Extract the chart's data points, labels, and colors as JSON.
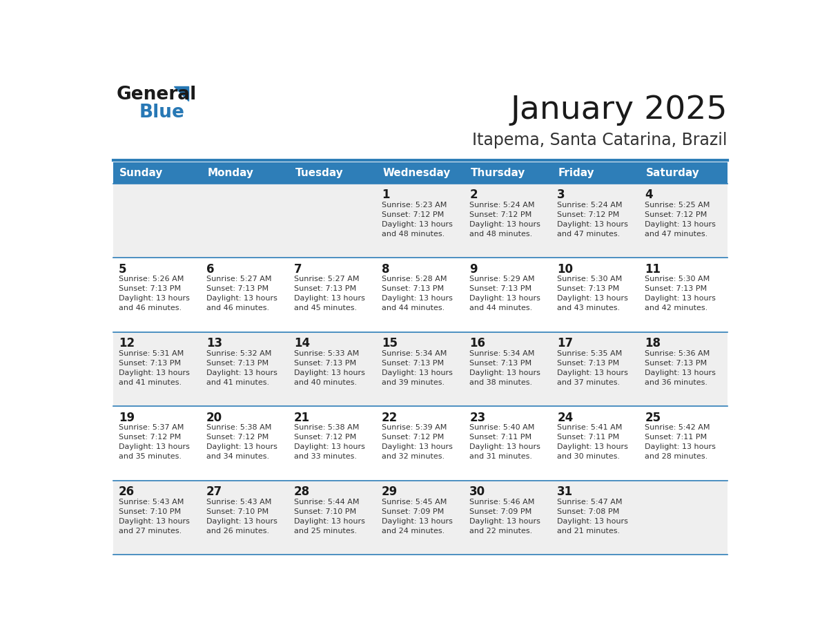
{
  "title": "January 2025",
  "subtitle": "Itapema, Santa Catarina, Brazil",
  "days_of_week": [
    "Sunday",
    "Monday",
    "Tuesday",
    "Wednesday",
    "Thursday",
    "Friday",
    "Saturday"
  ],
  "header_bg": "#2E7EB8",
  "header_text_color": "#FFFFFF",
  "cell_bg_white": "#FFFFFF",
  "cell_bg_gray": "#EFEFEF",
  "cell_border_color": "#2E7EB8",
  "day_number_color": "#1a1a1a",
  "cell_text_color": "#333333",
  "title_color": "#1a1a1a",
  "subtitle_color": "#333333",
  "logo_general_color": "#1a1a1a",
  "logo_blue_color": "#2778B5",
  "background_color": "#FFFFFF",
  "weeks": [
    [
      {
        "day": null,
        "info": null
      },
      {
        "day": null,
        "info": null
      },
      {
        "day": null,
        "info": null
      },
      {
        "day": 1,
        "info": "Sunrise: 5:23 AM\nSunset: 7:12 PM\nDaylight: 13 hours\nand 48 minutes."
      },
      {
        "day": 2,
        "info": "Sunrise: 5:24 AM\nSunset: 7:12 PM\nDaylight: 13 hours\nand 48 minutes."
      },
      {
        "day": 3,
        "info": "Sunrise: 5:24 AM\nSunset: 7:12 PM\nDaylight: 13 hours\nand 47 minutes."
      },
      {
        "day": 4,
        "info": "Sunrise: 5:25 AM\nSunset: 7:12 PM\nDaylight: 13 hours\nand 47 minutes."
      }
    ],
    [
      {
        "day": 5,
        "info": "Sunrise: 5:26 AM\nSunset: 7:13 PM\nDaylight: 13 hours\nand 46 minutes."
      },
      {
        "day": 6,
        "info": "Sunrise: 5:27 AM\nSunset: 7:13 PM\nDaylight: 13 hours\nand 46 minutes."
      },
      {
        "day": 7,
        "info": "Sunrise: 5:27 AM\nSunset: 7:13 PM\nDaylight: 13 hours\nand 45 minutes."
      },
      {
        "day": 8,
        "info": "Sunrise: 5:28 AM\nSunset: 7:13 PM\nDaylight: 13 hours\nand 44 minutes."
      },
      {
        "day": 9,
        "info": "Sunrise: 5:29 AM\nSunset: 7:13 PM\nDaylight: 13 hours\nand 44 minutes."
      },
      {
        "day": 10,
        "info": "Sunrise: 5:30 AM\nSunset: 7:13 PM\nDaylight: 13 hours\nand 43 minutes."
      },
      {
        "day": 11,
        "info": "Sunrise: 5:30 AM\nSunset: 7:13 PM\nDaylight: 13 hours\nand 42 minutes."
      }
    ],
    [
      {
        "day": 12,
        "info": "Sunrise: 5:31 AM\nSunset: 7:13 PM\nDaylight: 13 hours\nand 41 minutes."
      },
      {
        "day": 13,
        "info": "Sunrise: 5:32 AM\nSunset: 7:13 PM\nDaylight: 13 hours\nand 41 minutes."
      },
      {
        "day": 14,
        "info": "Sunrise: 5:33 AM\nSunset: 7:13 PM\nDaylight: 13 hours\nand 40 minutes."
      },
      {
        "day": 15,
        "info": "Sunrise: 5:34 AM\nSunset: 7:13 PM\nDaylight: 13 hours\nand 39 minutes."
      },
      {
        "day": 16,
        "info": "Sunrise: 5:34 AM\nSunset: 7:13 PM\nDaylight: 13 hours\nand 38 minutes."
      },
      {
        "day": 17,
        "info": "Sunrise: 5:35 AM\nSunset: 7:13 PM\nDaylight: 13 hours\nand 37 minutes."
      },
      {
        "day": 18,
        "info": "Sunrise: 5:36 AM\nSunset: 7:13 PM\nDaylight: 13 hours\nand 36 minutes."
      }
    ],
    [
      {
        "day": 19,
        "info": "Sunrise: 5:37 AM\nSunset: 7:12 PM\nDaylight: 13 hours\nand 35 minutes."
      },
      {
        "day": 20,
        "info": "Sunrise: 5:38 AM\nSunset: 7:12 PM\nDaylight: 13 hours\nand 34 minutes."
      },
      {
        "day": 21,
        "info": "Sunrise: 5:38 AM\nSunset: 7:12 PM\nDaylight: 13 hours\nand 33 minutes."
      },
      {
        "day": 22,
        "info": "Sunrise: 5:39 AM\nSunset: 7:12 PM\nDaylight: 13 hours\nand 32 minutes."
      },
      {
        "day": 23,
        "info": "Sunrise: 5:40 AM\nSunset: 7:11 PM\nDaylight: 13 hours\nand 31 minutes."
      },
      {
        "day": 24,
        "info": "Sunrise: 5:41 AM\nSunset: 7:11 PM\nDaylight: 13 hours\nand 30 minutes."
      },
      {
        "day": 25,
        "info": "Sunrise: 5:42 AM\nSunset: 7:11 PM\nDaylight: 13 hours\nand 28 minutes."
      }
    ],
    [
      {
        "day": 26,
        "info": "Sunrise: 5:43 AM\nSunset: 7:10 PM\nDaylight: 13 hours\nand 27 minutes."
      },
      {
        "day": 27,
        "info": "Sunrise: 5:43 AM\nSunset: 7:10 PM\nDaylight: 13 hours\nand 26 minutes."
      },
      {
        "day": 28,
        "info": "Sunrise: 5:44 AM\nSunset: 7:10 PM\nDaylight: 13 hours\nand 25 minutes."
      },
      {
        "day": 29,
        "info": "Sunrise: 5:45 AM\nSunset: 7:09 PM\nDaylight: 13 hours\nand 24 minutes."
      },
      {
        "day": 30,
        "info": "Sunrise: 5:46 AM\nSunset: 7:09 PM\nDaylight: 13 hours\nand 22 minutes."
      },
      {
        "day": 31,
        "info": "Sunrise: 5:47 AM\nSunset: 7:08 PM\nDaylight: 13 hours\nand 21 minutes."
      },
      {
        "day": null,
        "info": null
      }
    ]
  ]
}
